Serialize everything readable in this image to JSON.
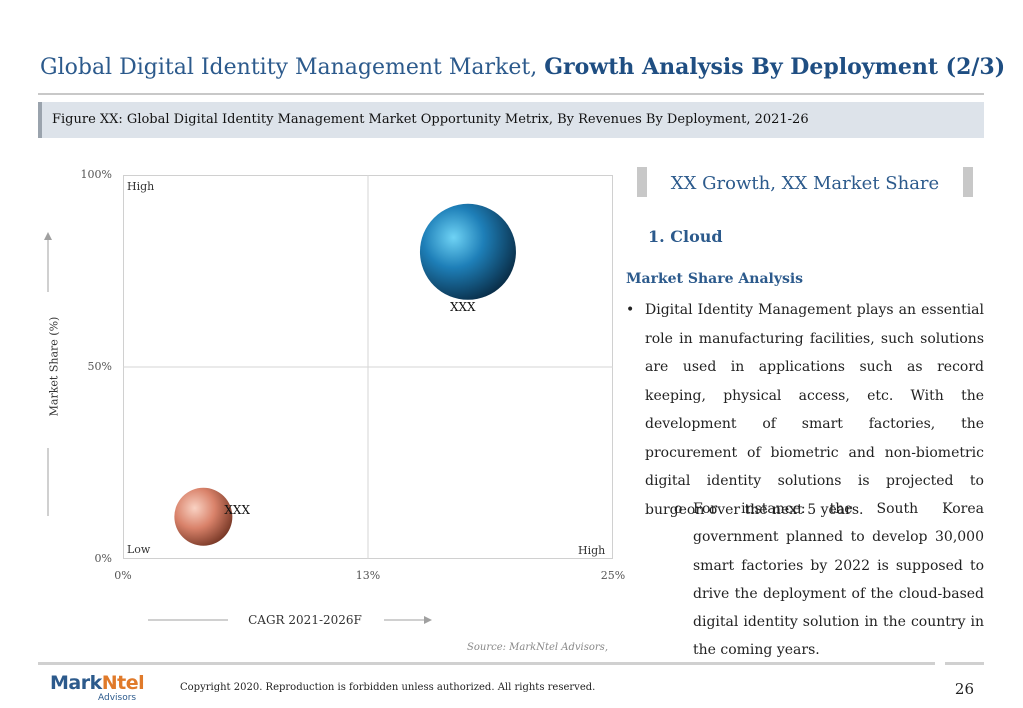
{
  "header": {
    "title_regular": "Global Digital Identity Management Market, ",
    "title_bold": "Growth Analysis By Deployment (2/3)"
  },
  "figure_caption": "Figure XX: Global Digital Identity Management Market Opportunity Metrix, By Revenues By Deployment, 2021-26",
  "chart_data": {
    "type": "scatter",
    "title": "",
    "xlabel": "CAGR 2021-2026F",
    "ylabel": "Market Share (%)",
    "x_ticks": [
      "0%",
      "13%",
      "25%"
    ],
    "y_ticks": [
      "0%",
      "50%",
      "100%"
    ],
    "xlim": [
      0,
      25
    ],
    "ylim": [
      0,
      100
    ],
    "corner_labels": {
      "top_left": "High",
      "bottom_left": "Low",
      "bottom_right": "High"
    },
    "points": [
      {
        "label": "XXX",
        "x": 17.6,
        "y": 80,
        "color": "#1e7fb8"
      },
      {
        "label": "XXX",
        "x": 4.1,
        "y": 11,
        "color": "#d9826a"
      }
    ],
    "grid": "quadrant"
  },
  "source": "Source: MarkNtel Advisors,",
  "right_panel": {
    "heading": "XX Growth, XX Market Share",
    "segment": "1. Cloud",
    "section_title": "Market Share Analysis",
    "bullet": "Digital Identity Management plays an essential role in manufacturing facilities, such solutions are used in applications such as record keeping, physical access, etc. With the development of smart factories, the procurement of biometric and non-biometric digital identity solutions is projected to burgeon over the next 5 years.",
    "sub_bullet": "For instance: the South Korea government planned to develop 30,000 smart factories by 2022 is supposed to drive the deployment of the cloud-based digital identity solution in the country in the coming years."
  },
  "footer": {
    "logo_mark": "Mark",
    "logo_mark_accent": "Ntel",
    "logo_sub": "Advisors",
    "copyright": "Copyright 2020. Reproduction is forbidden unless authorized. All rights reserved.",
    "page_number": "26"
  }
}
